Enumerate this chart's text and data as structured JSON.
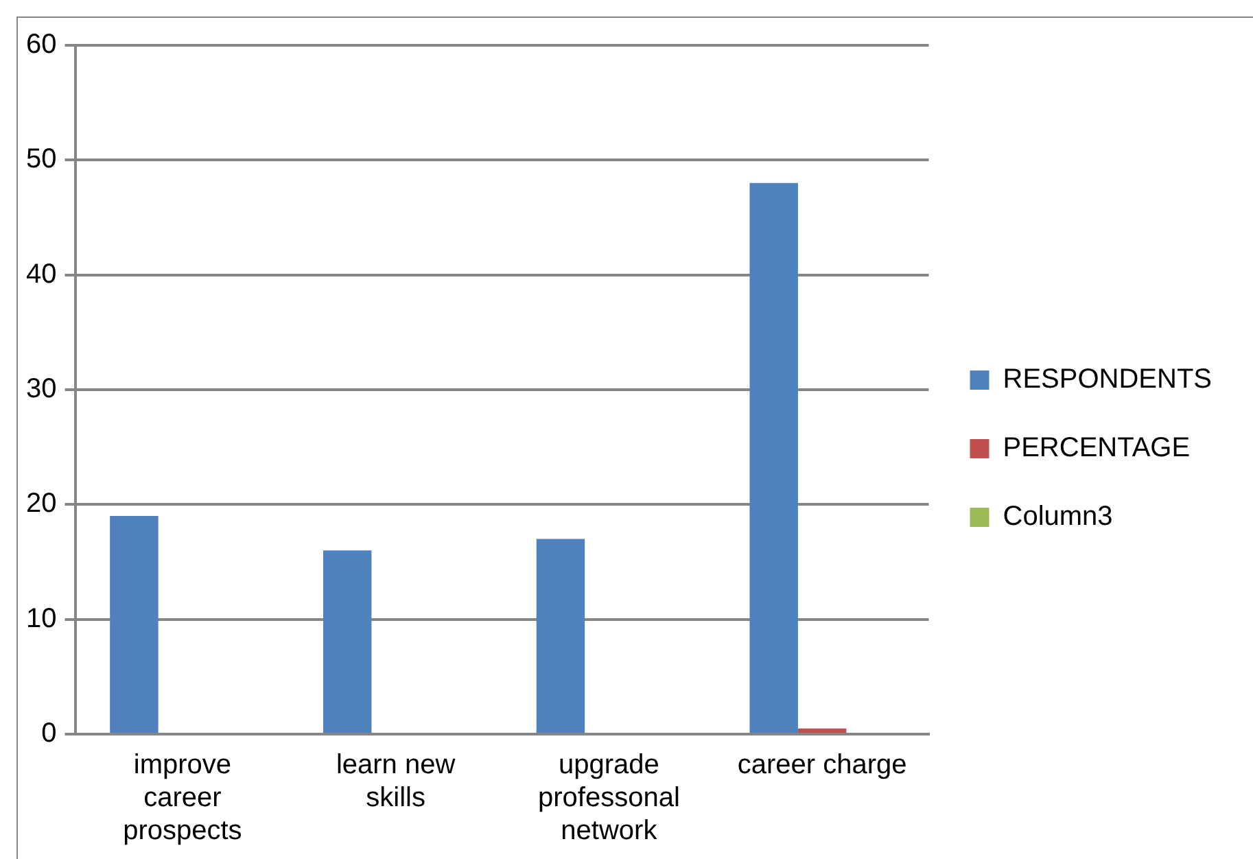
{
  "chart_data": {
    "type": "bar",
    "categories": [
      "improve career prospects",
      "learn new skills",
      "upgrade professonal network",
      "career charge"
    ],
    "series": [
      {
        "name": "RESPONDENTS",
        "color": "#4f81bd",
        "values": [
          19,
          16,
          17,
          48
        ]
      },
      {
        "name": "PERCENTAGE",
        "color": "#c0504d",
        "values": [
          0,
          0,
          0,
          0.5
        ]
      },
      {
        "name": "Column3",
        "color": "#9bbb59",
        "values": [
          null,
          null,
          null,
          null
        ]
      }
    ],
    "ylim": [
      0,
      60
    ],
    "yticks": [
      0,
      10,
      20,
      30,
      40,
      50,
      60
    ],
    "grid": "y",
    "legend": "right"
  }
}
